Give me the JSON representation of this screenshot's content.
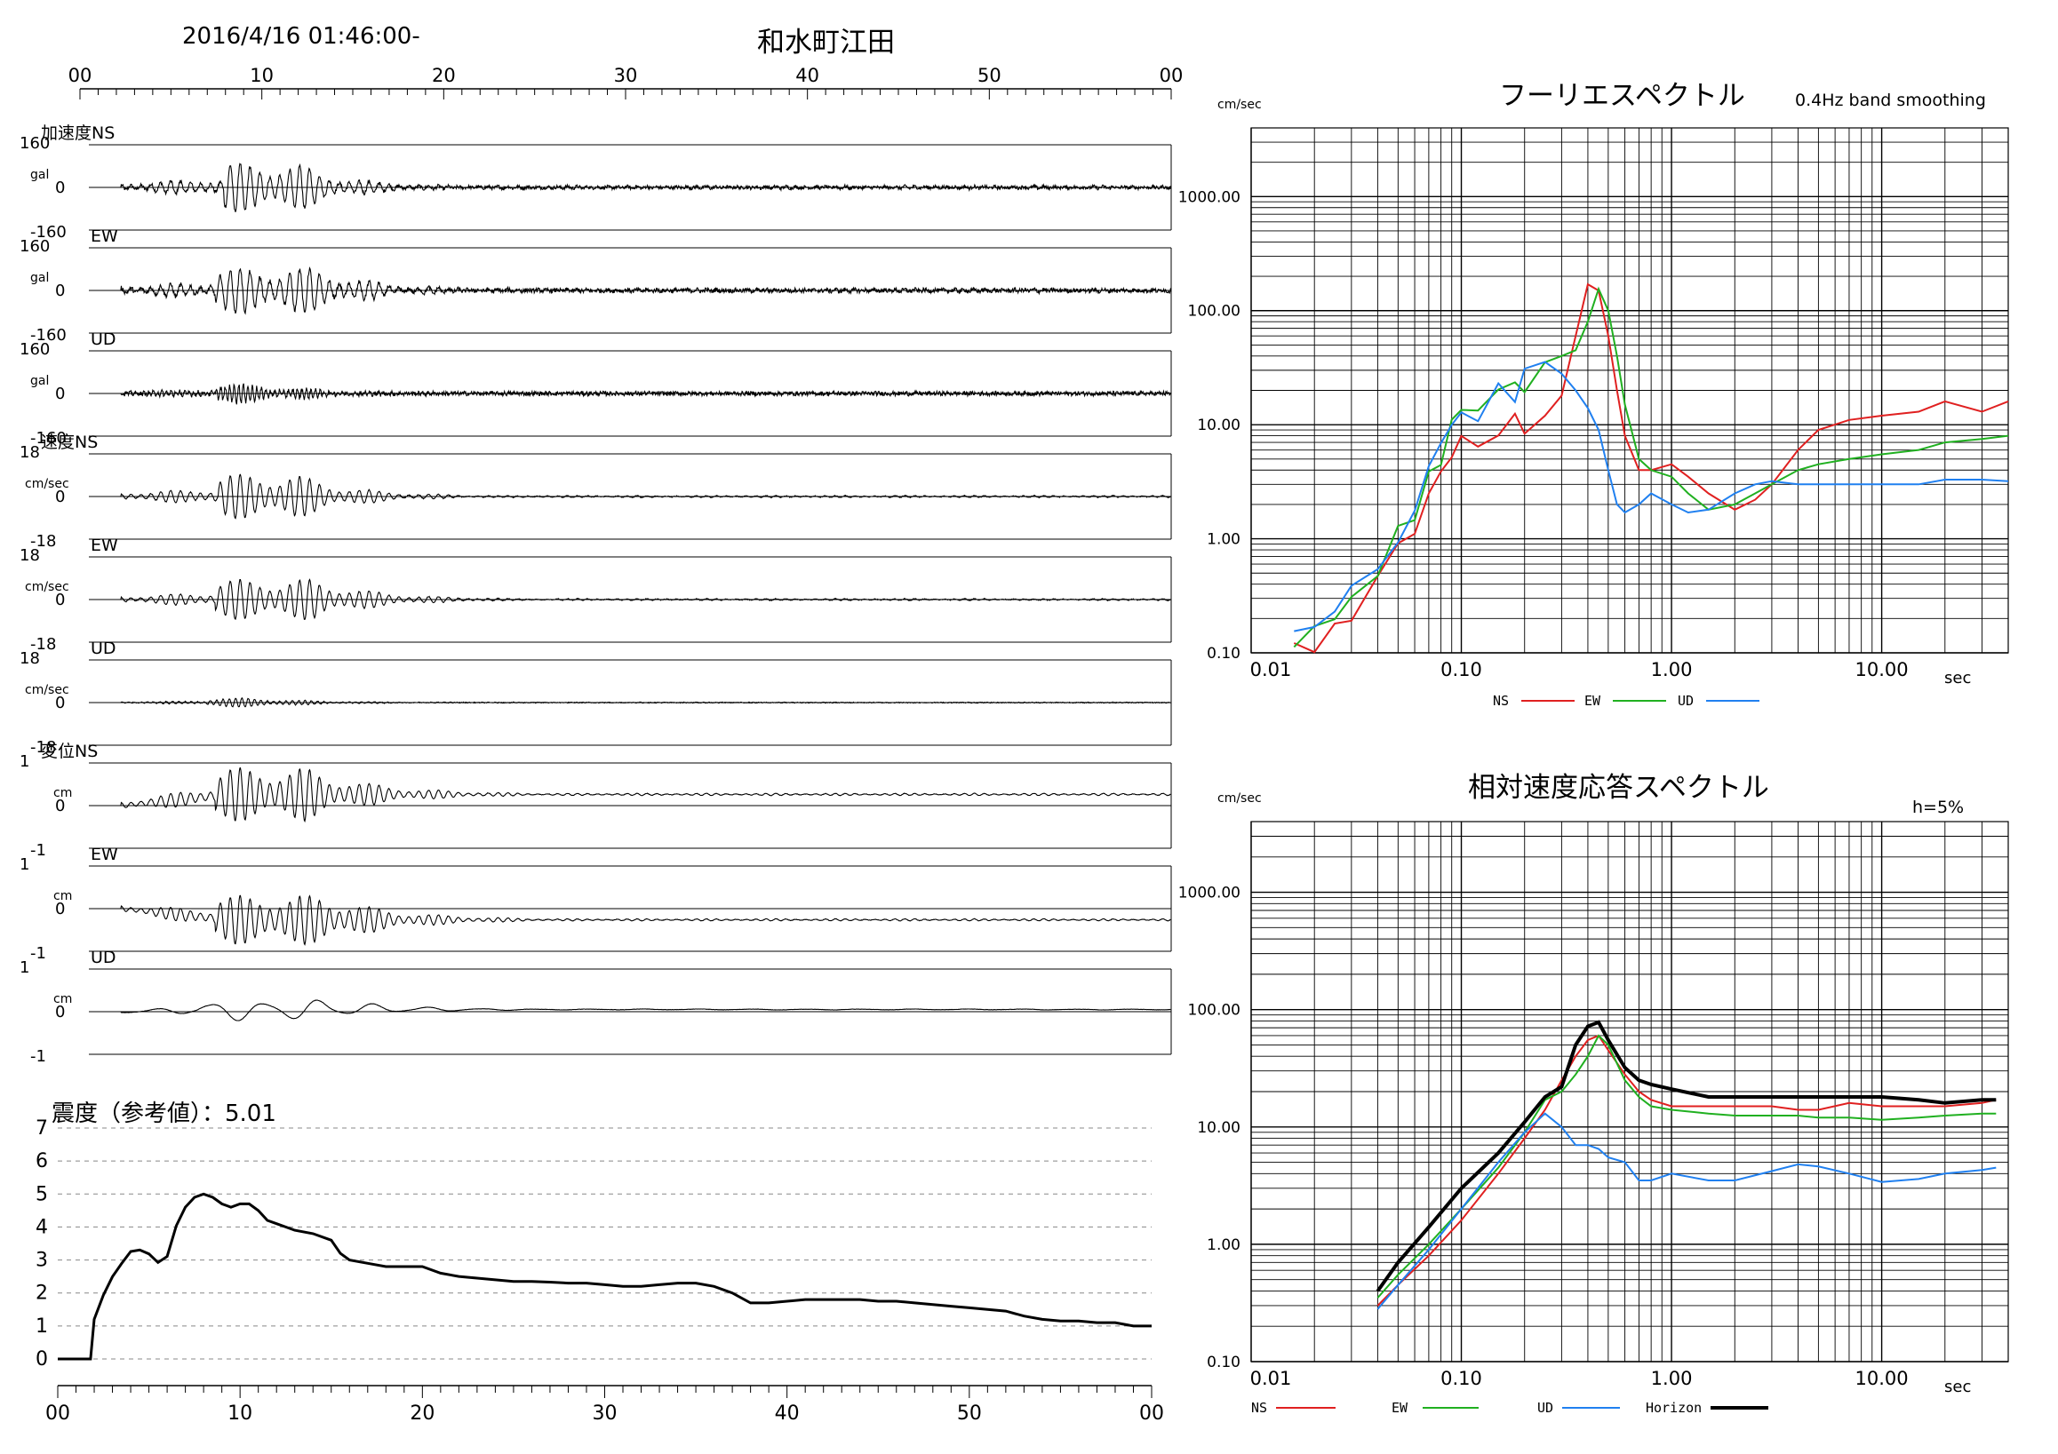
{
  "header": {
    "timestamp": "2016/4/16 01:46:00-",
    "station": "和水町江田",
    "time_axis_top": [
      "00",
      "10",
      "20",
      "30",
      "40",
      "50",
      "00"
    ]
  },
  "waveforms": [
    {
      "group": "加速度",
      "component": "NS",
      "label": "加速度NS",
      "unit": "gal",
      "range": [
        -160,
        160
      ],
      "ticks": [
        "160",
        "0",
        "-160"
      ],
      "burst": [
        7.5,
        11.5
      ],
      "amp": 0.55,
      "period": 0.55,
      "decay": 0.35,
      "noise": 0.04,
      "drift": 0
    },
    {
      "group": "",
      "component": "EW",
      "label": "EW",
      "unit": "gal",
      "range": [
        -160,
        160
      ],
      "ticks": [
        "160",
        "0",
        "-160"
      ],
      "burst": [
        7.0,
        12.5
      ],
      "amp": 0.5,
      "period": 0.55,
      "decay": 0.3,
      "noise": 0.05,
      "drift": 0
    },
    {
      "group": "",
      "component": "UD",
      "label": "UD",
      "unit": "gal",
      "range": [
        -160,
        160
      ],
      "ticks": [
        "160",
        "0",
        "-160"
      ],
      "burst": [
        7.0,
        9.5
      ],
      "amp": 0.2,
      "period": 0.25,
      "decay": 0.3,
      "noise": 0.05,
      "drift": 0
    },
    {
      "group": "速度",
      "component": "NS",
      "label": "速度NS",
      "unit": "cm/sec",
      "range": [
        -18,
        18
      ],
      "ticks": [
        "18",
        "0",
        "-18"
      ],
      "burst": [
        7.2,
        11.5
      ],
      "amp": 0.5,
      "period": 0.55,
      "decay": 0.3,
      "noise": 0.01,
      "drift": 0
    },
    {
      "group": "",
      "component": "EW",
      "label": "EW",
      "unit": "cm/sec",
      "range": [
        -18,
        18
      ],
      "ticks": [
        "18",
        "0",
        "-18"
      ],
      "burst": [
        7.0,
        12.5
      ],
      "amp": 0.45,
      "period": 0.55,
      "decay": 0.28,
      "noise": 0.01,
      "drift": 0
    },
    {
      "group": "",
      "component": "UD",
      "label": "UD",
      "unit": "cm/sec",
      "range": [
        -18,
        18
      ],
      "ticks": [
        "18",
        "0",
        "-18"
      ],
      "burst": [
        6.5,
        9.5
      ],
      "amp": 0.1,
      "period": 0.35,
      "decay": 0.3,
      "noise": 0.01,
      "drift": 0
    },
    {
      "group": "変位",
      "component": "NS",
      "label": "変位NS",
      "unit": "cm",
      "range": [
        -1,
        1
      ],
      "ticks": [
        "1",
        "0",
        "-1"
      ],
      "burst": [
        7.0,
        12.0
      ],
      "amp": 0.6,
      "period": 0.55,
      "decay": 0.25,
      "noise": 0.005,
      "drift": 0.25
    },
    {
      "group": "",
      "component": "EW",
      "label": "EW",
      "unit": "cm",
      "range": [
        -1,
        1
      ],
      "ticks": [
        "1",
        "0",
        "-1"
      ],
      "burst": [
        7.0,
        13.0
      ],
      "amp": 0.55,
      "period": 0.55,
      "decay": 0.25,
      "noise": 0.005,
      "drift": -0.25
    },
    {
      "group": "",
      "component": "UD",
      "label": "UD",
      "unit": "cm",
      "range": [
        -1,
        1
      ],
      "ticks": [
        "1",
        "0",
        "-1"
      ],
      "burst": [
        6.0,
        13.0
      ],
      "amp": 0.25,
      "period": 3.0,
      "decay": 0.25,
      "noise": 0.003,
      "drift": 0.05
    }
  ],
  "intensity": {
    "label": "震度（参考値）：5.01",
    "y_ticks": [
      "7",
      "6",
      "5",
      "4",
      "3",
      "2",
      "1",
      "0"
    ],
    "x_ticks": [
      "00",
      "10",
      "20",
      "30",
      "40",
      "50",
      "00"
    ],
    "ylim": [
      0,
      7
    ],
    "xlim": [
      0,
      60
    ],
    "chart_data": {
      "type": "line",
      "x": [
        0,
        1.8,
        2.0,
        2.5,
        3.0,
        3.5,
        4.0,
        4.5,
        5.0,
        5.5,
        6.0,
        6.5,
        7.0,
        7.5,
        8.0,
        8.5,
        9.0,
        9.5,
        10,
        10.5,
        11,
        11.5,
        12,
        12.5,
        13,
        14,
        15,
        15.5,
        16,
        17,
        18,
        19,
        20,
        21,
        22,
        23,
        24,
        25,
        26,
        27,
        28,
        29,
        30,
        31,
        32,
        33,
        34,
        35,
        36,
        37,
        38,
        39,
        40,
        41,
        42,
        43,
        44,
        45,
        46,
        47,
        48,
        49,
        50,
        51,
        52,
        53,
        54,
        55,
        56,
        57,
        58,
        59,
        60
      ],
      "y": [
        0,
        0,
        1.2,
        2.0,
        2.6,
        3.0,
        3.2,
        3.3,
        3.1,
        2.9,
        3.0,
        4.0,
        4.6,
        4.9,
        5.0,
        4.9,
        4.7,
        4.6,
        4.7,
        4.7,
        4.5,
        4.2,
        4.1,
        4.0,
        3.9,
        3.8,
        3.6,
        3.2,
        3.0,
        2.9,
        2.8,
        2.8,
        2.8,
        2.6,
        2.5,
        2.45,
        2.4,
        2.35,
        2.35,
        2.33,
        2.3,
        2.3,
        2.25,
        2.2,
        2.2,
        2.25,
        2.3,
        2.3,
        2.2,
        2.0,
        1.7,
        1.7,
        1.75,
        1.8,
        1.8,
        1.8,
        1.8,
        1.75,
        1.75,
        1.7,
        1.65,
        1.6,
        1.55,
        1.5,
        1.45,
        1.3,
        1.2,
        1.15,
        1.15,
        1.1,
        1.1,
        1.0,
        1.0
      ]
    }
  },
  "fourier": {
    "title": "フーリエスペクトル",
    "subtitle": "0.4Hz band smoothing",
    "unit": "cm/sec",
    "xlabel": "sec",
    "y_ticks": [
      "1000.00",
      "100.00",
      "10.00",
      "1.00",
      "0.10"
    ],
    "x_ticks": [
      "0.01",
      "0.10",
      "1.00",
      "10.00"
    ],
    "xlim": [
      0.01,
      40
    ],
    "ylim": [
      0.1,
      4000
    ],
    "legend": [
      "NS",
      "EW",
      "UD"
    ],
    "chart_data": {
      "type": "line",
      "scale": "log-log",
      "series": [
        {
          "name": "NS",
          "color": "#e02020",
          "x": [
            0.016,
            0.02,
            0.025,
            0.03,
            0.04,
            0.05,
            0.06,
            0.07,
            0.08,
            0.09,
            0.1,
            0.12,
            0.15,
            0.18,
            0.2,
            0.25,
            0.3,
            0.35,
            0.4,
            0.45,
            0.5,
            0.55,
            0.6,
            0.7,
            0.8,
            1.0,
            1.2,
            1.5,
            2.0,
            2.5,
            3.0,
            4.0,
            5.0,
            7.0,
            10,
            15,
            20,
            30,
            40
          ],
          "y": [
            0.1,
            0.12,
            0.15,
            0.2,
            0.4,
            0.8,
            1.5,
            2.5,
            4,
            6,
            8,
            7,
            8,
            11,
            10,
            12,
            18,
            60,
            170,
            150,
            60,
            20,
            8,
            4,
            4,
            4.5,
            3.5,
            2.5,
            1.8,
            2.2,
            3,
            6,
            9,
            11,
            12,
            13,
            16,
            13,
            16
          ]
        },
        {
          "name": "EW",
          "color": "#20b020",
          "x": [
            0.016,
            0.02,
            0.025,
            0.03,
            0.04,
            0.05,
            0.06,
            0.07,
            0.08,
            0.09,
            0.1,
            0.12,
            0.15,
            0.18,
            0.2,
            0.25,
            0.3,
            0.35,
            0.4,
            0.45,
            0.5,
            0.55,
            0.6,
            0.7,
            0.8,
            1.0,
            1.2,
            1.5,
            2.0,
            2.5,
            3.0,
            4.0,
            5.0,
            7.0,
            10,
            15,
            20,
            30,
            40
          ],
          "y": [
            0.1,
            0.15,
            0.2,
            0.3,
            0.6,
            1.2,
            2,
            3.5,
            6,
            9,
            13,
            15,
            18,
            20,
            25,
            30,
            40,
            45,
            80,
            155,
            100,
            40,
            15,
            5,
            4,
            3.5,
            2.5,
            1.8,
            2,
            2.5,
            3,
            4,
            4.5,
            5,
            5.5,
            6,
            7,
            7.5,
            8
          ]
        },
        {
          "name": "UD",
          "color": "#2080f0",
          "x": [
            0.016,
            0.02,
            0.025,
            0.03,
            0.04,
            0.05,
            0.06,
            0.07,
            0.08,
            0.09,
            0.1,
            0.12,
            0.15,
            0.18,
            0.2,
            0.25,
            0.3,
            0.35,
            0.4,
            0.45,
            0.5,
            0.55,
            0.6,
            0.7,
            0.8,
            1.0,
            1.2,
            1.5,
            2.0,
            2.5,
            3.0,
            4.0,
            5.0,
            7.0,
            10,
            15,
            20,
            30,
            40
          ],
          "y": [
            0.15,
            0.2,
            0.3,
            0.4,
            0.7,
            1.3,
            2.2,
            3.8,
            6,
            9,
            12,
            15,
            18,
            22,
            25,
            30,
            28,
            20,
            14,
            9,
            4,
            2,
            1.7,
            2,
            2.5,
            2,
            1.7,
            1.8,
            2.5,
            3,
            3.2,
            3,
            3,
            3,
            3,
            3,
            3.3,
            3.3,
            3.2
          ]
        }
      ]
    }
  },
  "response": {
    "title": "相対速度応答スペクトル",
    "damping": "h=5%",
    "unit": "cm/sec",
    "xlabel": "sec",
    "y_ticks": [
      "1000.00",
      "100.00",
      "10.00",
      "1.00",
      "0.10"
    ],
    "x_ticks": [
      "0.01",
      "0.10",
      "1.00",
      "10.00"
    ],
    "xlim": [
      0.01,
      40
    ],
    "ylim": [
      0.1,
      4000
    ],
    "legend": [
      "NS",
      "EW",
      "UD",
      "Horizon"
    ],
    "chart_data": {
      "type": "line",
      "scale": "log-log",
      "series": [
        {
          "name": "NS",
          "color": "#e02020",
          "x": [
            0.04,
            0.05,
            0.07,
            0.1,
            0.15,
            0.2,
            0.25,
            0.3,
            0.35,
            0.4,
            0.45,
            0.5,
            0.6,
            0.7,
            0.8,
            1.0,
            1.5,
            2.0,
            3.0,
            4.0,
            5.0,
            7.0,
            10,
            15,
            20,
            30,
            35
          ],
          "y": [
            0.3,
            0.45,
            0.8,
            1.6,
            4,
            8,
            14,
            25,
            40,
            55,
            60,
            45,
            28,
            20,
            17,
            15,
            15,
            15,
            15,
            14,
            14,
            16,
            15,
            15,
            15,
            16,
            17
          ]
        },
        {
          "name": "EW",
          "color": "#20b020",
          "x": [
            0.04,
            0.05,
            0.07,
            0.1,
            0.15,
            0.2,
            0.25,
            0.3,
            0.35,
            0.4,
            0.45,
            0.5,
            0.6,
            0.7,
            0.8,
            1.0,
            1.5,
            2.0,
            3.0,
            4.0,
            5.0,
            7.0,
            10,
            15,
            20,
            30,
            35
          ],
          "y": [
            0.35,
            0.55,
            1,
            2,
            4.5,
            9,
            17,
            20,
            28,
            40,
            60,
            50,
            25,
            18,
            15,
            14,
            13,
            12.5,
            12.5,
            12.5,
            12,
            12,
            11.5,
            12,
            12.5,
            13,
            13
          ]
        },
        {
          "name": "UD",
          "color": "#2080f0",
          "x": [
            0.04,
            0.05,
            0.07,
            0.1,
            0.15,
            0.2,
            0.25,
            0.3,
            0.35,
            0.4,
            0.45,
            0.5,
            0.6,
            0.7,
            0.8,
            1.0,
            1.5,
            2.0,
            3.0,
            4.0,
            5.0,
            7.0,
            10,
            15,
            20,
            30,
            35
          ],
          "y": [
            0.28,
            0.45,
            0.9,
            2,
            5,
            9,
            13,
            10,
            7,
            7,
            6.5,
            5.5,
            5,
            3.5,
            3.5,
            4,
            3.5,
            3.5,
            4.2,
            4.8,
            4.6,
            4,
            3.4,
            3.6,
            4,
            4.3,
            4.5
          ]
        },
        {
          "name": "Horizon",
          "color": "#000000",
          "x": [
            0.04,
            0.05,
            0.07,
            0.1,
            0.15,
            0.2,
            0.25,
            0.3,
            0.35,
            0.4,
            0.45,
            0.5,
            0.6,
            0.7,
            0.8,
            1.0,
            1.5,
            2.0,
            3.0,
            4.0,
            5.0,
            7.0,
            10,
            15,
            20,
            30,
            35
          ],
          "y": [
            0.4,
            0.7,
            1.4,
            3,
            6,
            11,
            18,
            22,
            50,
            72,
            78,
            55,
            32,
            25,
            23,
            21,
            18,
            18,
            18,
            18,
            18,
            18,
            18,
            17,
            16,
            17,
            17
          ]
        }
      ]
    }
  }
}
